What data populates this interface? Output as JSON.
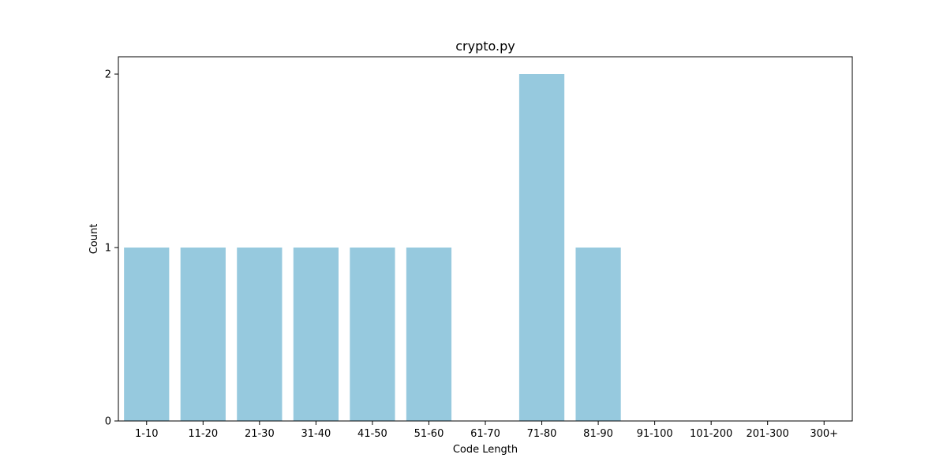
{
  "colors": {
    "bar": "#96c9de",
    "axis": "#000000",
    "background": "#ffffff"
  },
  "chart_data": {
    "type": "bar",
    "title": "crypto.py",
    "xlabel": "Code Length",
    "ylabel": "Count",
    "categories": [
      "1-10",
      "11-20",
      "21-30",
      "31-40",
      "41-50",
      "51-60",
      "61-70",
      "71-80",
      "81-90",
      "91-100",
      "101-200",
      "201-300",
      "300+"
    ],
    "values": [
      1,
      1,
      1,
      1,
      1,
      1,
      0,
      2,
      1,
      0,
      0,
      0,
      0
    ],
    "ylim": [
      0,
      2.1
    ],
    "yticks": [
      "0",
      "1",
      "2"
    ],
    "grid": false,
    "legend": "none"
  }
}
